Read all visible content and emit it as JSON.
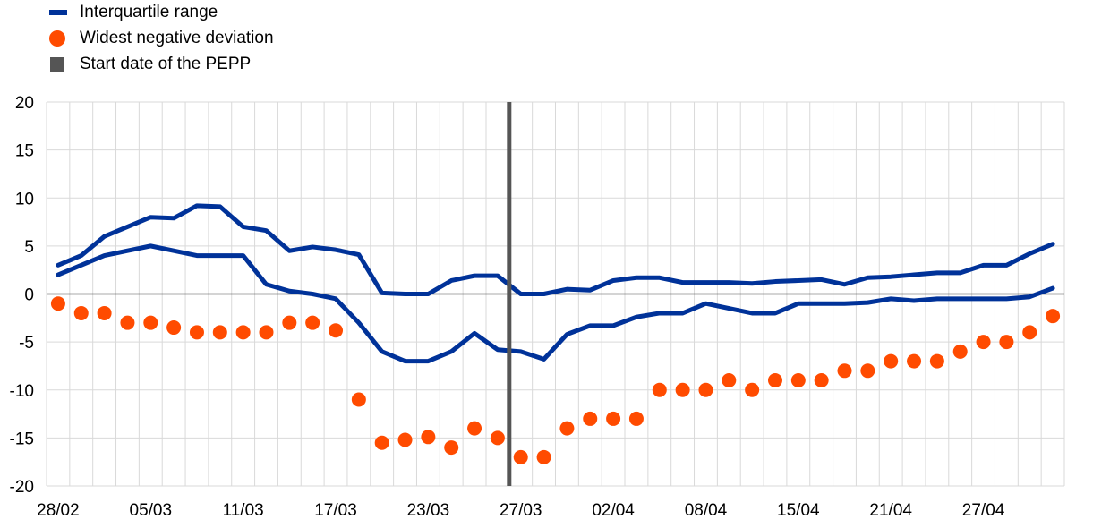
{
  "legend": {
    "interquartile": "Interquartile range",
    "widest": "Widest negative deviation",
    "pepp": "Start date of the PEPP"
  },
  "colors": {
    "interquartile": "#003299",
    "widest": "#FF4B00",
    "pepp": "#555555"
  },
  "chart_data": {
    "type": "line",
    "title": "",
    "xlabel": "",
    "ylabel": "",
    "ylim": [
      -20,
      20
    ],
    "yticks": [
      20,
      15,
      10,
      5,
      0,
      -5,
      -10,
      -15,
      -20
    ],
    "x_tick_labels": [
      {
        "index": 0,
        "label": "28/02"
      },
      {
        "index": 4,
        "label": "05/03"
      },
      {
        "index": 8,
        "label": "11/03"
      },
      {
        "index": 12,
        "label": "17/03"
      },
      {
        "index": 16,
        "label": "23/03"
      },
      {
        "index": 20,
        "label": "27/03"
      },
      {
        "index": 24,
        "label": "02/04"
      },
      {
        "index": 28,
        "label": "08/04"
      },
      {
        "index": 32,
        "label": "15/04"
      },
      {
        "index": 36,
        "label": "21/04"
      },
      {
        "index": 40,
        "label": "27/04"
      }
    ],
    "grid": true,
    "legend_position": "top-left",
    "pepp_start_index": 19,
    "series": [
      {
        "name": "Interquartile range",
        "role": "upper",
        "values": [
          3,
          4,
          6,
          7,
          8,
          7.9,
          9.2,
          9.1,
          7,
          6.6,
          4.5,
          4.9,
          4.6,
          4.1,
          0.1,
          0,
          0,
          1.4,
          1.9,
          1.9,
          0,
          0,
          0.5,
          0.4,
          1.4,
          1.7,
          1.7,
          1.2,
          1.2,
          1.2,
          1.1,
          1.3,
          1.4,
          1.5,
          1,
          1.7,
          1.8,
          2,
          2.2,
          2.2,
          3,
          3,
          4.2,
          5.2
        ]
      },
      {
        "name": "Interquartile range",
        "role": "lower",
        "values": [
          2,
          3,
          4,
          4.5,
          5,
          4.5,
          4,
          4,
          4,
          1,
          0.3,
          0,
          -0.5,
          -3,
          -6,
          -7,
          -7,
          -6,
          -4.1,
          -5.8,
          -6,
          -6.8,
          -4.2,
          -3.3,
          -3.3,
          -2.4,
          -2,
          -2,
          -1,
          -1.5,
          -2,
          -2,
          -1,
          -1,
          -1,
          -0.9,
          -0.5,
          -0.7,
          -0.5,
          -0.5,
          -0.5,
          -0.5,
          -0.3,
          0.6
        ]
      },
      {
        "name": "Widest negative deviation",
        "values": [
          -1,
          -2,
          -2,
          -3,
          -3,
          -3.5,
          -4,
          -4,
          -4,
          -4,
          -3,
          -3,
          -3.8,
          -11,
          -15.5,
          -15.2,
          -14.9,
          -16,
          -14,
          -15,
          -17,
          -17,
          -14,
          -13,
          -13,
          -13,
          -10,
          -10,
          -10,
          -9,
          -10,
          -9,
          -9,
          -9,
          -8,
          -8,
          -7,
          -7,
          -7,
          -6,
          -5,
          -5,
          -4,
          -2.3
        ]
      }
    ]
  }
}
